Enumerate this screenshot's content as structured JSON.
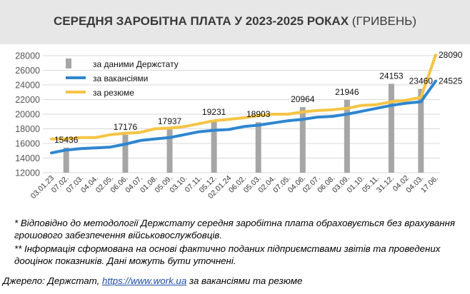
{
  "title_main": "СЕРЕДНЯ ЗАРОБІТНА ПЛАТА У 2023-2025 РОКАХ",
  "title_unit": "(ГРИВЕНЬ)",
  "colors": {
    "bars": "#a6a6a6",
    "vacancies": "#2e86d0",
    "resume": "#f6c445",
    "grid": "#d9d9d9"
  },
  "chart_data": {
    "type": "bar+line",
    "title": "СЕРЕДНЯ ЗАРОБІТНА ПЛАТА У 2023-2025 РОКАХ (ГРИВЕНЬ)",
    "ylim": [
      12000,
      28000
    ],
    "yticks": [
      12000,
      14000,
      16000,
      18000,
      20000,
      22000,
      24000,
      26000,
      28000
    ],
    "grid": true,
    "legend_position": "top-left",
    "categories": [
      "03.01.23",
      "07.02.",
      "07.03.",
      "04.04.",
      "02.05.",
      "06.06.",
      "04.07.",
      "01.08.",
      "05.09.",
      "03.10.",
      "07.11.",
      "05.12.",
      "02.01.24",
      "06.02.",
      "05.03.",
      "02.04.",
      "07.05.",
      "04.06.",
      "02.07.",
      "06.08.",
      "03.09.",
      "01.10.",
      "05.11.",
      "31.12.",
      "04.02",
      "04.03.",
      "17.06."
    ],
    "bars": {
      "name": "за даними Держстату",
      "points": [
        {
          "category": "07.02.",
          "value": 15436
        },
        {
          "category": "06.06.",
          "value": 17176
        },
        {
          "category": "05.09.",
          "value": 17937
        },
        {
          "category": "05.12.",
          "value": 19231
        },
        {
          "category": "05.03.",
          "value": 18903
        },
        {
          "category": "04.06.",
          "value": 20964
        },
        {
          "category": "03.09.",
          "value": 21946
        },
        {
          "category": "31.12.",
          "value": 24153
        },
        {
          "category": "04.03.",
          "value": 23460
        }
      ]
    },
    "series": [
      {
        "name": "за вакансіями",
        "values": [
          14700,
          15100,
          15300,
          15400,
          15500,
          15900,
          16400,
          16600,
          16800,
          17200,
          17600,
          17800,
          17900,
          18300,
          18500,
          18800,
          19100,
          19300,
          19600,
          19700,
          20000,
          20400,
          20800,
          21200,
          21500,
          21700,
          24525
        ],
        "end_label": "24525"
      },
      {
        "name": "за резюме",
        "values": [
          16600,
          16600,
          16800,
          16800,
          17200,
          17400,
          17500,
          18000,
          18100,
          18300,
          18700,
          19100,
          19300,
          19500,
          19800,
          20000,
          20000,
          20300,
          20500,
          20600,
          20800,
          21200,
          21300,
          21700,
          21900,
          22300,
          28090
        ],
        "end_label": "28090"
      }
    ]
  },
  "notes": [
    "* Відповідно до методології Держстату середня заробітна плата обраховується без врахування грошового забезпечення військовослужбовців.",
    "** Інформація сформована на основі фактично поданих підприємствами звітів та проведених дооцінок показників. Дані можуть бути уточнені."
  ],
  "source": {
    "prefix": "Джерело: Держстат, ",
    "link": "https://www.work.ua",
    "suffix": " за вакансіями та резюме"
  }
}
